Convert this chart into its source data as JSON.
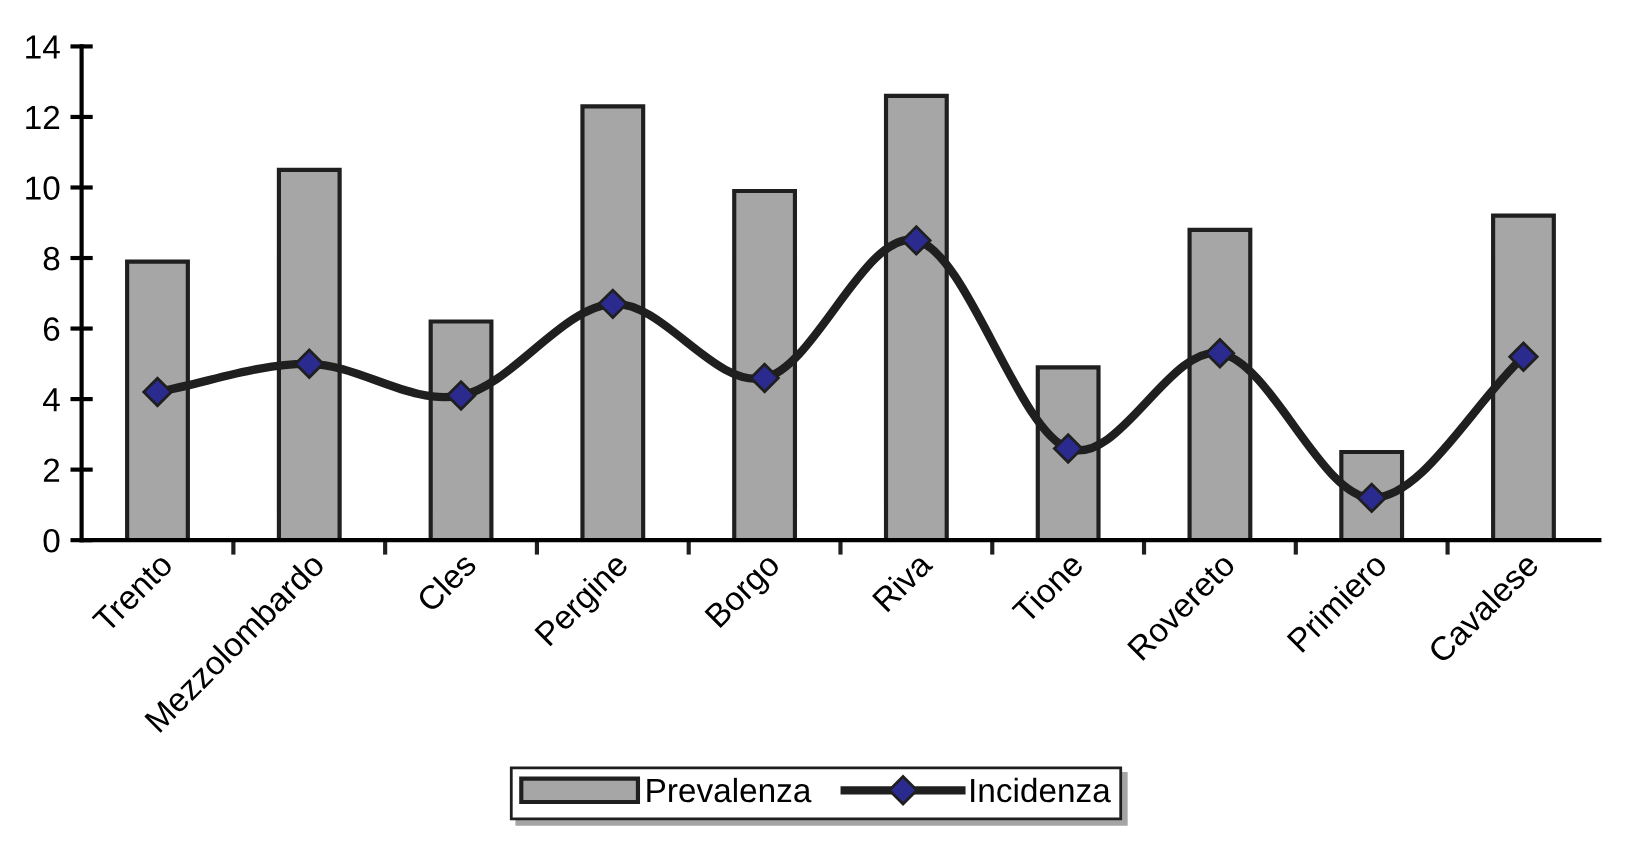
{
  "chart_data": {
    "type": "bar",
    "categories": [
      "Trento",
      "Mezzolombardo",
      "Cles",
      "Pergine",
      "Borgo",
      "Riva",
      "Tione",
      "Rovereto",
      "Primiero",
      "Cavalese"
    ],
    "series": [
      {
        "name": "Prevalenza",
        "color": "#a6a6a6",
        "values": [
          7.9,
          10.5,
          6.2,
          12.3,
          9.9,
          12.6,
          4.9,
          8.8,
          2.5,
          9.2
        ]
      },
      {
        "name": "Incidenza",
        "type": "line",
        "color": "#1f1f1f",
        "values": [
          4.2,
          5.0,
          4.1,
          6.7,
          4.6,
          8.5,
          2.6,
          5.3,
          1.2,
          5.2
        ]
      }
    ],
    "ylim": [
      0,
      14
    ],
    "yticks": [
      0,
      2,
      4,
      6,
      8,
      10,
      12,
      14
    ],
    "grid": false,
    "legend": "bottom",
    "marker": "diamond",
    "line_style": "solid"
  }
}
